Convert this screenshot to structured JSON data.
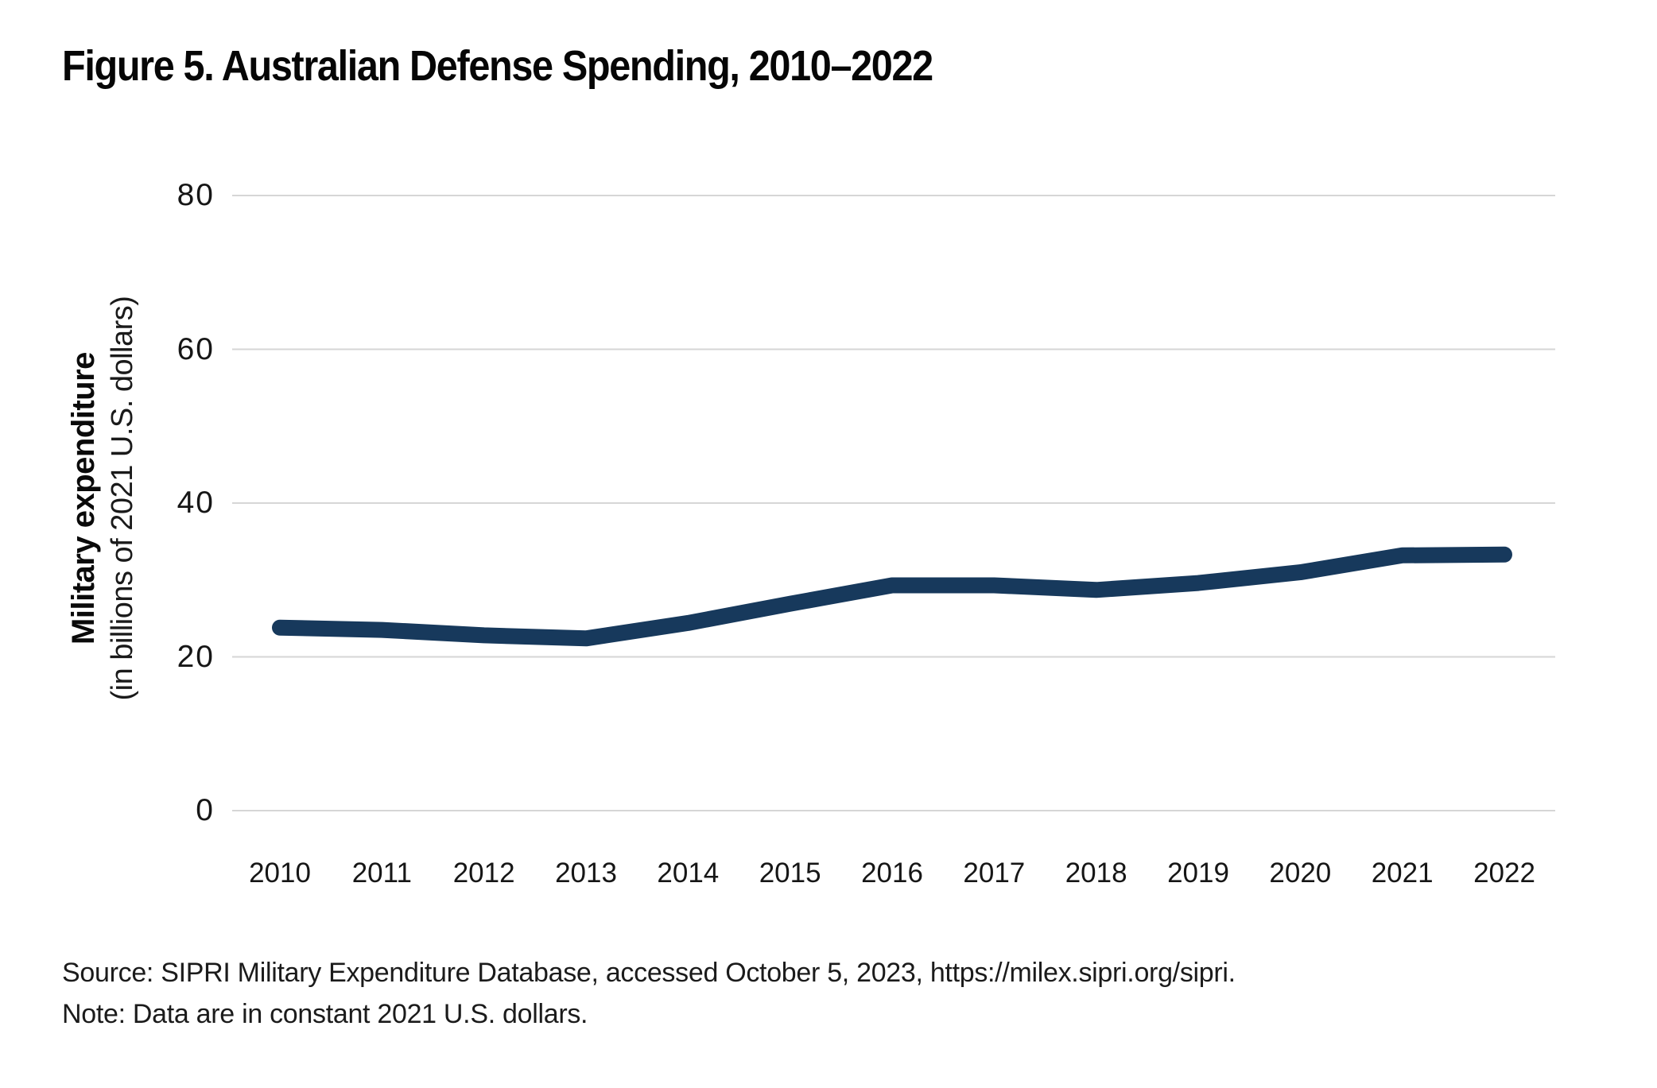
{
  "figure": {
    "title": "Figure 5. Australian Defense Spending, 2010–2022",
    "source": "Source: SIPRI Military Expenditure Database, accessed October 5, 2023, https://milex.sipri.org/sipri.",
    "note": "Note: Data are in constant 2021 U.S. dollars."
  },
  "chart_data": {
    "type": "line",
    "title": "Figure 5. Australian Defense Spending, 2010–2022",
    "x": [
      2010,
      2011,
      2012,
      2013,
      2014,
      2015,
      2016,
      2017,
      2018,
      2019,
      2020,
      2021,
      2022
    ],
    "series": [
      {
        "name": "Australian military expenditure",
        "values": [
          23.8,
          23.5,
          22.8,
          22.4,
          24.4,
          26.9,
          29.3,
          29.3,
          28.7,
          29.6,
          31.0,
          33.2,
          33.3
        ]
      }
    ],
    "ylabel_main": "Military expenditure",
    "ylabel_sub": "(in billions of 2021 U.S. dollars)",
    "yticks": [
      0,
      20,
      40,
      60,
      80
    ],
    "ylim": [
      0,
      80
    ],
    "grid": "horizontal gridlines at each y tick",
    "legend": "none",
    "colors": {
      "line": "#17395c",
      "gridline": "#d6d6d6",
      "text": "#161616"
    }
  }
}
